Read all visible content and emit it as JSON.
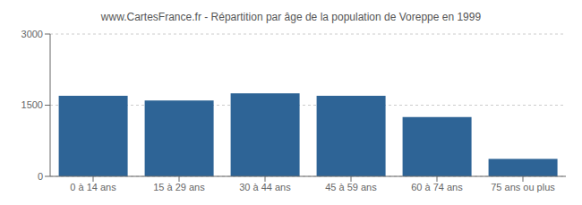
{
  "chart_data": {
    "type": "bar",
    "title": "www.CartesFrance.fr - Répartition par âge de la population de Voreppe en 1999",
    "categories": [
      "0 à 14 ans",
      "15 à 29 ans",
      "30 à 44 ans",
      "45 à 59 ans",
      "60 à 74 ans",
      "75 ans ou plus"
    ],
    "values": [
      1700,
      1600,
      1750,
      1700,
      1250,
      370
    ],
    "color": "#2e6496",
    "ylim": [
      0,
      3000
    ],
    "yticks": [
      0,
      1500,
      3000
    ],
    "grid": true
  }
}
